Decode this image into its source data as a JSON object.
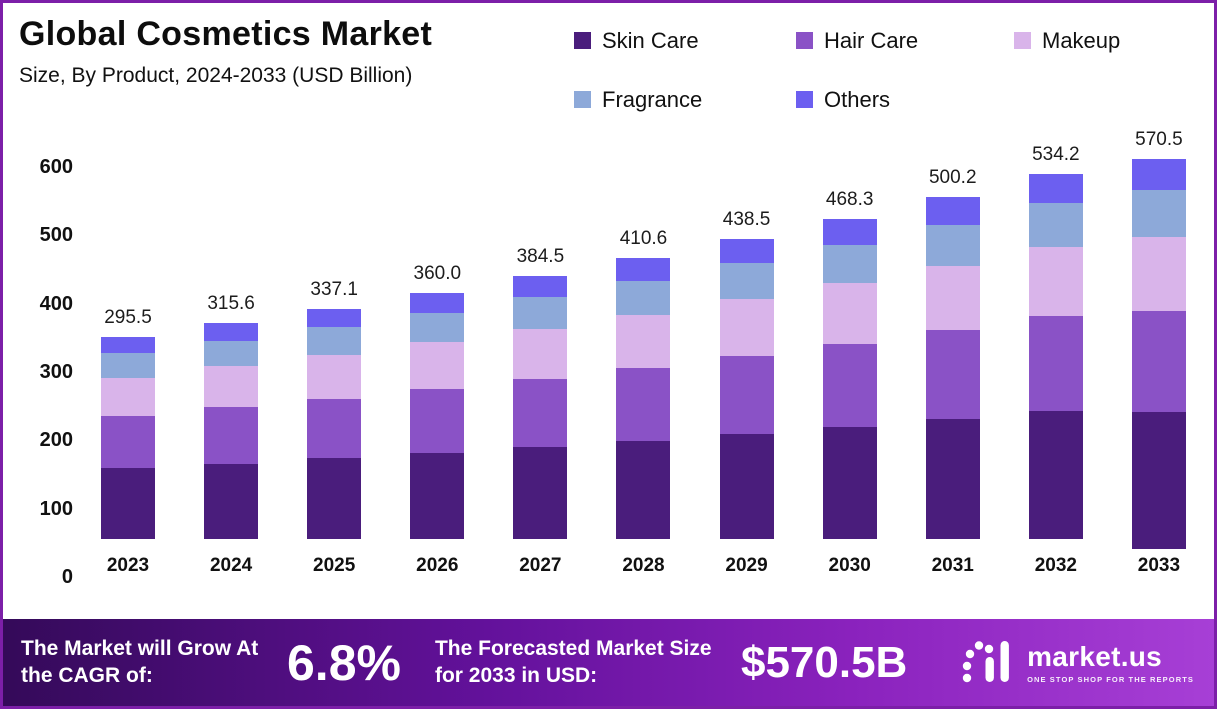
{
  "header": {
    "title": "Global Cosmetics Market",
    "subtitle": "Size, By Product, 2024-2033 (USD Billion)"
  },
  "chart_data": {
    "type": "bar",
    "stacked": true,
    "title": "Global Cosmetics Market Size, By Product, 2024-2033 (USD Billion)",
    "xlabel": "",
    "ylabel": "",
    "ylim": [
      0,
      600
    ],
    "yticks": [
      0,
      100,
      200,
      300,
      400,
      500,
      600
    ],
    "grid": false,
    "legend_position": "top-right",
    "categories": [
      "2023",
      "2024",
      "2025",
      "2026",
      "2027",
      "2028",
      "2029",
      "2030",
      "2031",
      "2032",
      "2033"
    ],
    "totals": [
      295.5,
      315.6,
      337.1,
      360.0,
      384.5,
      410.6,
      438.5,
      468.3,
      500.2,
      534.2,
      570.5
    ],
    "series": [
      {
        "name": "Skin Care",
        "color": "#4a1d7c",
        "values": [
          103.4,
          110.5,
          118.0,
          126.0,
          134.6,
          143.7,
          153.5,
          163.9,
          175.1,
          187.0,
          199.7
        ]
      },
      {
        "name": "Hair Care",
        "color": "#8a52c6",
        "values": [
          76.8,
          82.1,
          87.6,
          93.6,
          100.0,
          106.8,
          114.0,
          121.8,
          130.1,
          138.9,
          148.3
        ]
      },
      {
        "name": "Makeup",
        "color": "#d9b4ea",
        "values": [
          56.1,
          60.0,
          64.0,
          68.4,
          73.1,
          78.0,
          83.3,
          89.0,
          95.0,
          101.5,
          108.4
        ]
      },
      {
        "name": "Fragrance",
        "color": "#8da9d9",
        "values": [
          35.5,
          37.9,
          40.5,
          43.2,
          46.1,
          49.3,
          52.6,
          56.2,
          60.0,
          64.1,
          68.5
        ]
      },
      {
        "name": "Others",
        "color": "#6c5ff0",
        "values": [
          23.7,
          25.1,
          27.0,
          28.8,
          30.7,
          32.8,
          35.1,
          37.4,
          40.0,
          42.7,
          45.6
        ]
      }
    ]
  },
  "footer": {
    "cagr_label": "The Market will Grow At the CAGR of:",
    "cagr_value": "6.8%",
    "forecast_label": "The Forecasted Market Size for 2033 in USD:",
    "forecast_value": "$570.5B",
    "brand": "market.us",
    "brand_tagline": "One Stop Shop For The Reports"
  }
}
